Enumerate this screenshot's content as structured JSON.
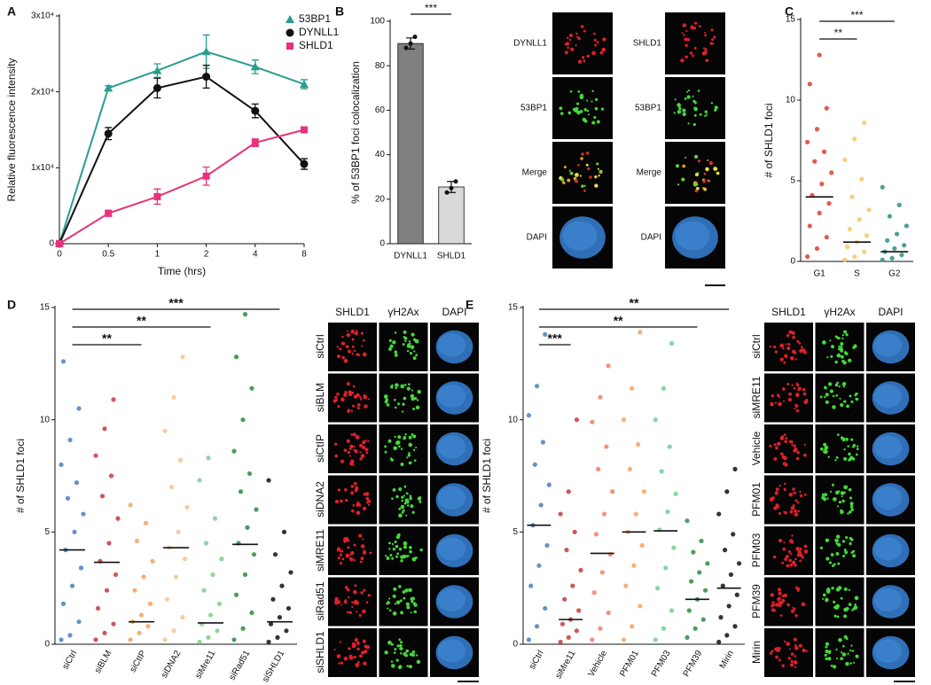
{
  "chart_data": [
    {
      "panel": "A",
      "type": "line",
      "x_label": "Time (hrs)",
      "y_label": "Relative fluorescence intensity",
      "categories": [
        "0",
        "0.5",
        "1",
        "2",
        "4",
        "8"
      ],
      "ylim": [
        0,
        30000
      ],
      "yticks": [
        0,
        {
          "value": 10000,
          "label": "1x10⁴"
        },
        {
          "value": 20000,
          "label": "2x10⁴"
        },
        {
          "value": 30000,
          "label": "3x10⁴"
        }
      ],
      "legend": "upper right",
      "series": [
        {
          "name": "53BP1",
          "color": "#2a9d8f",
          "marker": "triangle",
          "values": [
            0,
            20500,
            22800,
            25300,
            23300,
            21000
          ],
          "errors": [
            0,
            300,
            900,
            2200,
            900,
            600
          ]
        },
        {
          "name": "DYNLL1",
          "color": "#111111",
          "marker": "circle",
          "values": [
            0,
            14500,
            20500,
            22000,
            17500,
            10500
          ],
          "errors": [
            0,
            800,
            1300,
            1500,
            900,
            700
          ]
        },
        {
          "name": "SHLD1",
          "color": "#e8327c",
          "marker": "square",
          "values": [
            0,
            4000,
            6200,
            8900,
            13300,
            15000
          ],
          "errors": [
            0,
            400,
            1000,
            1200,
            500,
            300
          ]
        }
      ]
    },
    {
      "panel": "B",
      "type": "bar",
      "y_label": "% of 53BP1 foci colocalization",
      "categories": [
        "DYNLL1",
        "SHLD1"
      ],
      "values": [
        90,
        25.5
      ],
      "errors": [
        2.5,
        2.5
      ],
      "points": [
        [
          88,
          90,
          93
        ],
        [
          23,
          25,
          28
        ]
      ],
      "colors": [
        "#7f7f7f",
        "#d9d9d9"
      ],
      "ylim": [
        0,
        100
      ],
      "yticks": [
        0,
        20,
        40,
        60,
        80,
        100
      ],
      "significance": [
        {
          "from": 0,
          "to": 1,
          "label": "***"
        }
      ]
    },
    {
      "panel": "C",
      "type": "strip",
      "y_label": "# of SHLD1 foci",
      "categories": [
        "G1",
        "S",
        "G2"
      ],
      "colors": [
        "#e23b2e",
        "#f7c66b",
        "#2a8e8a"
      ],
      "medians": [
        4,
        1.2,
        0.6
      ],
      "points": [
        [
          0.3,
          0.8,
          1.5,
          2.2,
          3.0,
          3.6,
          4.1,
          4.8,
          5.5,
          6.2,
          6.8,
          7.4,
          8.2,
          9.5,
          11.0,
          12.8
        ],
        [
          0.1,
          0.3,
          0.6,
          0.9,
          1.2,
          1.6,
          2.0,
          2.6,
          3.2,
          4.0,
          5.1,
          6.3,
          7.6,
          8.6
        ],
        [
          0.1,
          0.2,
          0.4,
          0.6,
          0.8,
          1.0,
          1.3,
          1.7,
          2.2,
          2.8,
          3.5,
          4.6
        ]
      ],
      "ylim": [
        0,
        15
      ],
      "yticks": [
        0,
        5,
        10,
        15
      ],
      "significance": [
        {
          "from": 0,
          "to": 2,
          "label": "***"
        },
        {
          "from": 0,
          "to": 1,
          "label": "**"
        }
      ]
    },
    {
      "panel": "D",
      "type": "strip",
      "y_label": "# of SHLD1 foci",
      "categories": [
        "siCtrl",
        "siBLM",
        "siCtIP",
        "siDNA2",
        "siMre11",
        "siRad51",
        "siSHLD1"
      ],
      "colors": [
        "#4a7fc1",
        "#c83a3a",
        "#f5a25d",
        "#f6c48e",
        "#7ccf8a",
        "#2e8b3e",
        "#111111"
      ],
      "medians": [
        4.2,
        3.65,
        1.0,
        4.3,
        0.95,
        4.45,
        1.0
      ],
      "points": [
        [
          0.2,
          0.4,
          1.0,
          1.8,
          2.6,
          3.4,
          4.2,
          5.0,
          5.8,
          6.5,
          7.2,
          8.0,
          9.1,
          10.5,
          12.6
        ],
        [
          0.2,
          0.5,
          0.9,
          1.6,
          2.4,
          3.1,
          3.7,
          4.5,
          5.6,
          6.6,
          7.5,
          8.4,
          9.6,
          10.9
        ],
        [
          0.2,
          0.5,
          0.8,
          1.0,
          1.3,
          1.8,
          2.4,
          3.0,
          3.7,
          4.6,
          5.4,
          6.2
        ],
        [
          0.2,
          0.6,
          1.2,
          2.0,
          3.0,
          3.8,
          4.3,
          5.0,
          6.1,
          7.0,
          8.2,
          9.5,
          11.0,
          12.8
        ],
        [
          0.1,
          0.3,
          0.6,
          0.9,
          1.3,
          1.8,
          2.4,
          3.1,
          3.8,
          4.5,
          5.6,
          7.3,
          8.3
        ],
        [
          0.2,
          0.7,
          1.4,
          2.2,
          3.1,
          4.0,
          4.5,
          5.2,
          6.0,
          6.8,
          7.6,
          8.6,
          10.0,
          11.4,
          12.8,
          14.7
        ],
        [
          0.1,
          0.3,
          0.6,
          0.9,
          1.2,
          1.6,
          2.0,
          2.6,
          3.2,
          4.0,
          5.0,
          7.3
        ]
      ],
      "ylim": [
        0,
        15
      ],
      "yticks": [
        0,
        5,
        10,
        15
      ],
      "significance": [
        {
          "from": 0,
          "to": 6,
          "label": "***"
        },
        {
          "from": 0,
          "to": 4,
          "label": "**"
        },
        {
          "from": 0,
          "to": 2,
          "label": "**"
        }
      ]
    },
    {
      "panel": "E",
      "type": "strip",
      "y_label": "# of SHLD1 foci",
      "categories": [
        "siCtrl",
        "siMre11",
        "Vehicle",
        "PFM01",
        "PFM03",
        "PFM39",
        "Mirin"
      ],
      "colors": [
        "#4a7fc1",
        "#c83a3a",
        "#f08060",
        "#f5a25d",
        "#6fcf8a",
        "#2e8b3e",
        "#111111"
      ],
      "medians": [
        5.3,
        1.1,
        4.05,
        5.0,
        5.05,
        2.0,
        2.5
      ],
      "points": [
        [
          0.2,
          0.8,
          1.6,
          2.6,
          3.5,
          4.4,
          5.3,
          6.2,
          7.1,
          8.0,
          9.0,
          10.2,
          11.5,
          13.8
        ],
        [
          0.1,
          0.3,
          0.6,
          0.9,
          1.1,
          1.5,
          2.0,
          2.6,
          3.3,
          4.2,
          5.0,
          5.8,
          6.8,
          10.0
        ],
        [
          0.2,
          0.7,
          1.4,
          2.3,
          3.2,
          4.0,
          4.9,
          5.8,
          6.8,
          7.8,
          8.8,
          9.9,
          11.0,
          12.4
        ],
        [
          0.2,
          0.8,
          1.7,
          2.6,
          3.5,
          4.4,
          5.0,
          5.8,
          6.8,
          7.8,
          8.9,
          10.0,
          11.4,
          13.9
        ],
        [
          0.2,
          0.7,
          1.5,
          2.5,
          3.4,
          4.3,
          5.1,
          5.9,
          6.7,
          7.7,
          8.8,
          10.0,
          11.4,
          13.4
        ],
        [
          0.3,
          0.7,
          1.1,
          1.5,
          2.0,
          2.4,
          2.8,
          3.2,
          3.6,
          4.1,
          4.6,
          5.5
        ],
        [
          0.1,
          0.4,
          0.8,
          1.2,
          1.7,
          2.2,
          2.6,
          3.1,
          3.6,
          4.2,
          4.9,
          5.8,
          6.8,
          7.8
        ]
      ],
      "ylim": [
        0,
        15
      ],
      "yticks": [
        0,
        5,
        10,
        15
      ],
      "significance": [
        {
          "from": 0,
          "to": 6,
          "label": "**"
        },
        {
          "from": 0,
          "to": 5,
          "label": "**"
        },
        {
          "from": 0,
          "to": 1,
          "label": "***"
        }
      ]
    }
  ],
  "micrographs": {
    "B": {
      "columns": [
        [
          "DYNLL1",
          "53BP1",
          "Merge",
          "DAPI"
        ],
        [
          "SHLD1",
          "53BP1",
          "Merge",
          "DAPI"
        ]
      ]
    },
    "D": {
      "headers": [
        "SHLD1",
        "γH2Ax",
        "DAPI"
      ],
      "rows": [
        "siCtrl",
        "siBLM",
        "siCtIP",
        "siDNA2",
        "siMRE11",
        "siRad51",
        "siSHLD1"
      ]
    },
    "E": {
      "headers": [
        "SHLD1",
        "γH2Ax",
        "DAPI"
      ],
      "rows": [
        "siCtrl",
        "siMRE11",
        "Vehicle",
        "PFM01",
        "PFM03",
        "PFM39",
        "Mirin"
      ]
    }
  }
}
